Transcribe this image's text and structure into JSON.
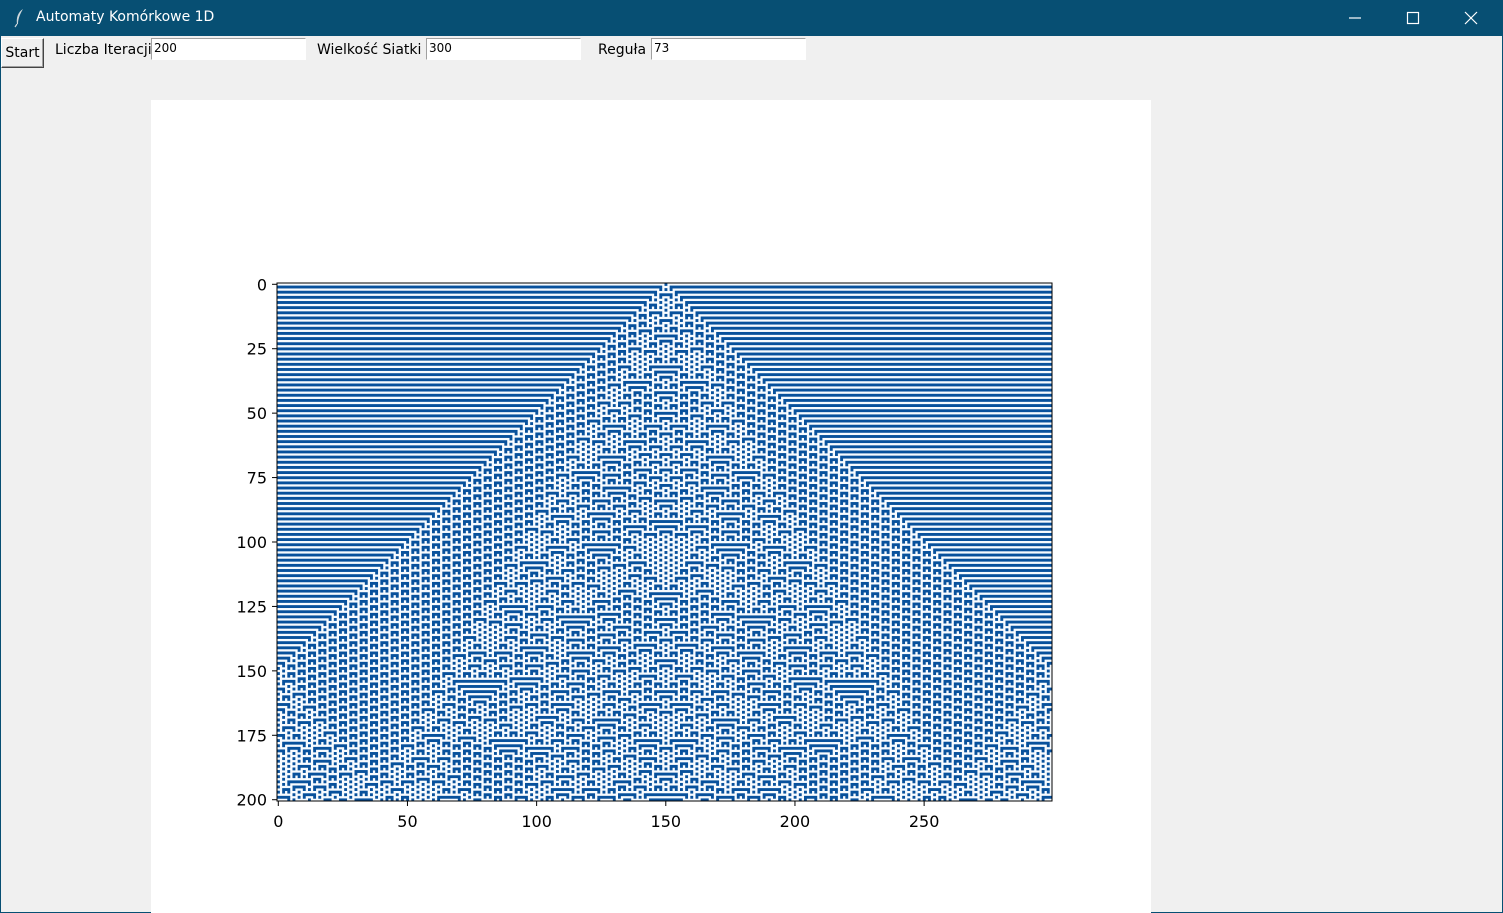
{
  "window": {
    "title": "Automaty Komórkowe 1D",
    "icon": "feather-icon",
    "controls": [
      "minimize-icon",
      "maximize-icon",
      "close-icon"
    ],
    "titlebar_color": "#074f73"
  },
  "toolbar": {
    "start_label": "Start",
    "iterations_label": "Liczba Iteracji",
    "iterations_value": "200",
    "grid_size_label": "Wielkość Siatki",
    "grid_size_value": "300",
    "rule_label": "Reguła",
    "rule_value": "73"
  },
  "chart_data": {
    "type": "heatmap",
    "description": "Elementary cellular automaton, Rule 73, single seed at center, blue/white binary colormap",
    "rule": 73,
    "width": 300,
    "iterations": 200,
    "seed_index": 150,
    "colors": {
      "on": "#08519c",
      "off": "#f7fbff"
    },
    "xticks": [
      0,
      50,
      100,
      150,
      200,
      250
    ],
    "yticks": [
      0,
      25,
      50,
      75,
      100,
      125,
      150,
      175,
      200
    ],
    "xlim": [
      0,
      299
    ],
    "ylim": [
      200,
      0
    ]
  }
}
